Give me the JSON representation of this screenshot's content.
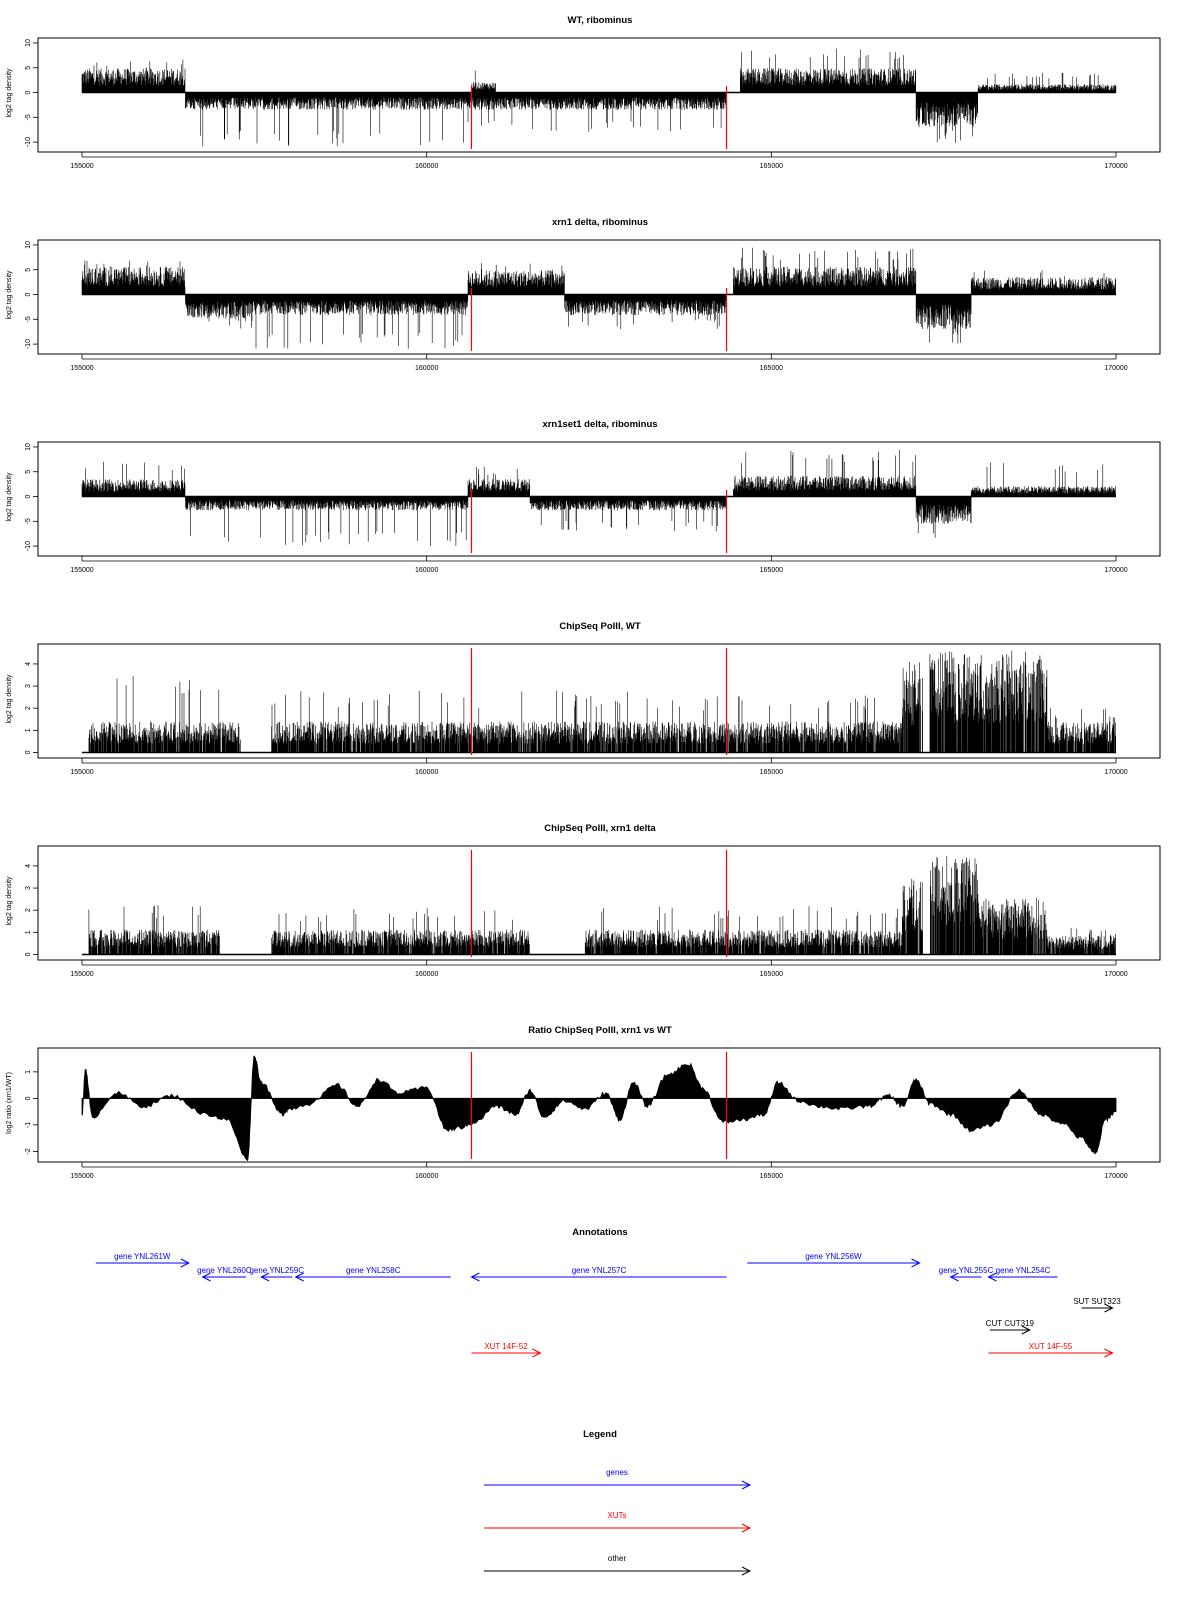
{
  "figure": {
    "colors": {
      "signal": "#000000",
      "marker": "#ff0000",
      "gene": "#0000ff",
      "xut": "#ff0000",
      "other": "#000000",
      "frame": "#000000"
    }
  },
  "chart_data": [
    {
      "type": "bar",
      "title": "WT, ribominus",
      "ylabel": "log2 tag density",
      "xlim": [
        155000,
        170000
      ],
      "ylim": [
        -12,
        11
      ],
      "x_ticks": [
        155000,
        160000,
        165000,
        170000
      ],
      "y_ticks": [
        -10,
        -5,
        0,
        5,
        10
      ],
      "markers_x": [
        160650,
        164350
      ],
      "segments": [
        {
          "start": 155000,
          "end": 156500,
          "baseline": 3.5,
          "peak": 7
        },
        {
          "start": 156500,
          "end": 160600,
          "baseline": -2.5,
          "peak": -11
        },
        {
          "start": 160650,
          "end": 161000,
          "baseline": 1.5,
          "peak": 5
        },
        {
          "start": 160600,
          "end": 164350,
          "baseline": -2.5,
          "peak": -8
        },
        {
          "start": 164550,
          "end": 167100,
          "baseline": 3.5,
          "peak": 9
        },
        {
          "start": 167100,
          "end": 168000,
          "baseline": -5,
          "peak": -11
        },
        {
          "start": 168000,
          "end": 170000,
          "baseline": 1.2,
          "peak": 4
        }
      ]
    },
    {
      "type": "bar",
      "title": "xrn1 delta, ribominus",
      "ylabel": "log2 tag density",
      "xlim": [
        155000,
        170000
      ],
      "ylim": [
        -12,
        11
      ],
      "x_ticks": [
        155000,
        160000,
        165000,
        170000
      ],
      "y_ticks": [
        -10,
        -5,
        0,
        5,
        10
      ],
      "markers_x": [
        160650,
        164350
      ],
      "segments": [
        {
          "start": 155000,
          "end": 156500,
          "baseline": 4,
          "peak": 7
        },
        {
          "start": 156500,
          "end": 157500,
          "baseline": -3.5,
          "peak": -7
        },
        {
          "start": 157500,
          "end": 160600,
          "baseline": -3,
          "peak": -11
        },
        {
          "start": 160600,
          "end": 162000,
          "baseline": 3.5,
          "peak": 7
        },
        {
          "start": 162000,
          "end": 164350,
          "baseline": -3,
          "peak": -7
        },
        {
          "start": 164450,
          "end": 167100,
          "baseline": 4,
          "peak": 9.5
        },
        {
          "start": 167100,
          "end": 167900,
          "baseline": -5,
          "peak": -10
        },
        {
          "start": 167900,
          "end": 170000,
          "baseline": 2.5,
          "peak": 5
        }
      ]
    },
    {
      "type": "bar",
      "title": "xrn1set1 delta, ribominus",
      "ylabel": "log2 tag density",
      "xlim": [
        155000,
        170000
      ],
      "ylim": [
        -12,
        11
      ],
      "x_ticks": [
        155000,
        160000,
        165000,
        170000
      ],
      "y_ticks": [
        -10,
        -5,
        0,
        5,
        10
      ],
      "markers_x": [
        160650,
        164350
      ],
      "segments": [
        {
          "start": 155000,
          "end": 156500,
          "baseline": 2.5,
          "peak": 7
        },
        {
          "start": 156500,
          "end": 160600,
          "baseline": -2,
          "peak": -10
        },
        {
          "start": 160600,
          "end": 161500,
          "baseline": 2.5,
          "peak": 6
        },
        {
          "start": 161500,
          "end": 164350,
          "baseline": -2,
          "peak": -7
        },
        {
          "start": 164450,
          "end": 167100,
          "baseline": 3,
          "peak": 9.5
        },
        {
          "start": 167100,
          "end": 167900,
          "baseline": -4,
          "peak": -9
        },
        {
          "start": 167900,
          "end": 170000,
          "baseline": 1.5,
          "peak": 7
        }
      ]
    },
    {
      "type": "bar",
      "title": "ChipSeq PolII, WT",
      "ylabel": "log2 tag density",
      "xlim": [
        155000,
        170000
      ],
      "ylim": [
        -0.25,
        4.9
      ],
      "x_ticks": [
        155000,
        160000,
        165000,
        170000
      ],
      "y_ticks": [
        0,
        1,
        2,
        3,
        4
      ],
      "markers_x": [
        160650,
        164350
      ],
      "segments": [
        {
          "start": 155100,
          "end": 157300,
          "baseline": 1,
          "peak": 3.6
        },
        {
          "start": 157750,
          "end": 163200,
          "baseline": 1,
          "peak": 2.8
        },
        {
          "start": 163200,
          "end": 166900,
          "baseline": 1,
          "peak": 2.6
        },
        {
          "start": 166900,
          "end": 167200,
          "baseline": 3,
          "peak": 3.7
        },
        {
          "start": 167300,
          "end": 169000,
          "baseline": 3.3,
          "peak": 4.7
        },
        {
          "start": 169000,
          "end": 170000,
          "baseline": 1,
          "peak": 2.2
        }
      ]
    },
    {
      "type": "bar",
      "title": "ChipSeq PolII, xrn1 delta",
      "ylabel": "log2 tag density",
      "xlim": [
        155000,
        170000
      ],
      "ylim": [
        -0.25,
        4.9
      ],
      "x_ticks": [
        155000,
        160000,
        165000,
        170000
      ],
      "y_ticks": [
        0,
        1,
        2,
        3,
        4
      ],
      "markers_x": [
        160650,
        164350
      ],
      "segments": [
        {
          "start": 155100,
          "end": 157000,
          "baseline": 0.8,
          "peak": 2.3
        },
        {
          "start": 157750,
          "end": 161500,
          "baseline": 0.8,
          "peak": 2.1
        },
        {
          "start": 162300,
          "end": 166900,
          "baseline": 0.8,
          "peak": 2.2
        },
        {
          "start": 166900,
          "end": 167200,
          "baseline": 2.5,
          "peak": 3.2
        },
        {
          "start": 167300,
          "end": 168000,
          "baseline": 3.2,
          "peak": 4
        },
        {
          "start": 168000,
          "end": 169000,
          "baseline": 1.8,
          "peak": 2.6
        },
        {
          "start": 169000,
          "end": 170000,
          "baseline": 0.6,
          "peak": 1.2
        }
      ]
    },
    {
      "type": "area",
      "title": "Ratio ChipSeq PolII, xrn1 vs WT",
      "ylabel": "log2 ratio (xrn1/WT)",
      "xlim": [
        155000,
        170000
      ],
      "ylim": [
        -2.4,
        1.9
      ],
      "x_ticks": [
        155000,
        160000,
        165000,
        170000
      ],
      "y_ticks": [
        -2,
        -1,
        0,
        1
      ],
      "markers_x": [
        160650,
        164350
      ],
      "x": [
        155000,
        155050,
        155150,
        155500,
        155900,
        156300,
        156800,
        157100,
        157400,
        157500,
        157600,
        157900,
        158000,
        158300,
        158700,
        159000,
        159300,
        159600,
        160000,
        160300,
        160500,
        160700,
        161000,
        161300,
        161500,
        161700,
        162000,
        162300,
        162600,
        162800,
        163000,
        163200,
        163500,
        163800,
        164000,
        164300,
        164600,
        164900,
        165100,
        165400,
        165700,
        166000,
        166400,
        166700,
        166900,
        167100,
        167300,
        167600,
        167900,
        168200,
        168600,
        168900,
        169200,
        169500,
        169700,
        169850,
        170000
      ],
      "y": [
        -0.6,
        1.1,
        -0.7,
        0.2,
        -0.3,
        0.1,
        -0.6,
        -0.8,
        -2.3,
        1.6,
        0.6,
        -0.6,
        -0.4,
        -0.2,
        0.5,
        -0.3,
        0.7,
        0.2,
        0.4,
        -1.2,
        -1.1,
        -0.9,
        -0.3,
        -0.6,
        0.3,
        -0.7,
        -0.1,
        -0.4,
        0.2,
        -0.8,
        0.6,
        -0.3,
        0.9,
        1.3,
        0.4,
        -0.9,
        -0.8,
        -0.6,
        0.6,
        -0.1,
        -0.3,
        -0.4,
        -0.3,
        0.1,
        -0.3,
        0.7,
        -0.2,
        -0.6,
        -1.2,
        -1.0,
        0.3,
        -0.6,
        -0.9,
        -1.5,
        -2.1,
        -0.8,
        -0.5
      ]
    }
  ],
  "annotations": {
    "title": "Annotations",
    "features": [
      {
        "label": "gene YNL261W",
        "start": 155200,
        "end": 156550,
        "strand": "+",
        "type": "gene",
        "row": 0
      },
      {
        "label": "gene YNL260C",
        "start": 156750,
        "end": 157380,
        "strand": "-",
        "type": "gene",
        "row": 1
      },
      {
        "label": "gene YNL259C",
        "start": 157600,
        "end": 158050,
        "strand": "-",
        "type": "gene",
        "row": 1
      },
      {
        "label": "gene YNL258C",
        "start": 158100,
        "end": 160350,
        "strand": "-",
        "type": "gene",
        "row": 1
      },
      {
        "label": "gene YNL257C",
        "start": 160650,
        "end": 164350,
        "strand": "-",
        "type": "gene",
        "row": 1
      },
      {
        "label": "gene YNL256W",
        "start": 164650,
        "end": 167150,
        "strand": "+",
        "type": "gene",
        "row": 0
      },
      {
        "label": "gene YNL255C",
        "start": 167600,
        "end": 168050,
        "strand": "-",
        "type": "gene",
        "row": 1
      },
      {
        "label": "gene YNL254C",
        "start": 168150,
        "end": 169150,
        "strand": "-",
        "type": "gene",
        "row": 1
      },
      {
        "label": "SUT SUT323",
        "start": 169500,
        "end": 169950,
        "strand": "+",
        "type": "other",
        "row": 2
      },
      {
        "label": "CUT CUT319",
        "start": 168170,
        "end": 168750,
        "strand": "+",
        "type": "other",
        "row": 3
      },
      {
        "label": "XUT 14F-52",
        "start": 160650,
        "end": 161650,
        "strand": "+",
        "type": "xut",
        "row": 4
      },
      {
        "label": "XUT 14F-55",
        "start": 168150,
        "end": 169950,
        "strand": "+",
        "type": "xut",
        "row": 4
      }
    ]
  },
  "legend": {
    "title": "Legend",
    "items": [
      {
        "label": "genes",
        "type": "gene"
      },
      {
        "label": "XUTs",
        "type": "xut"
      },
      {
        "label": "other",
        "type": "other"
      }
    ]
  }
}
